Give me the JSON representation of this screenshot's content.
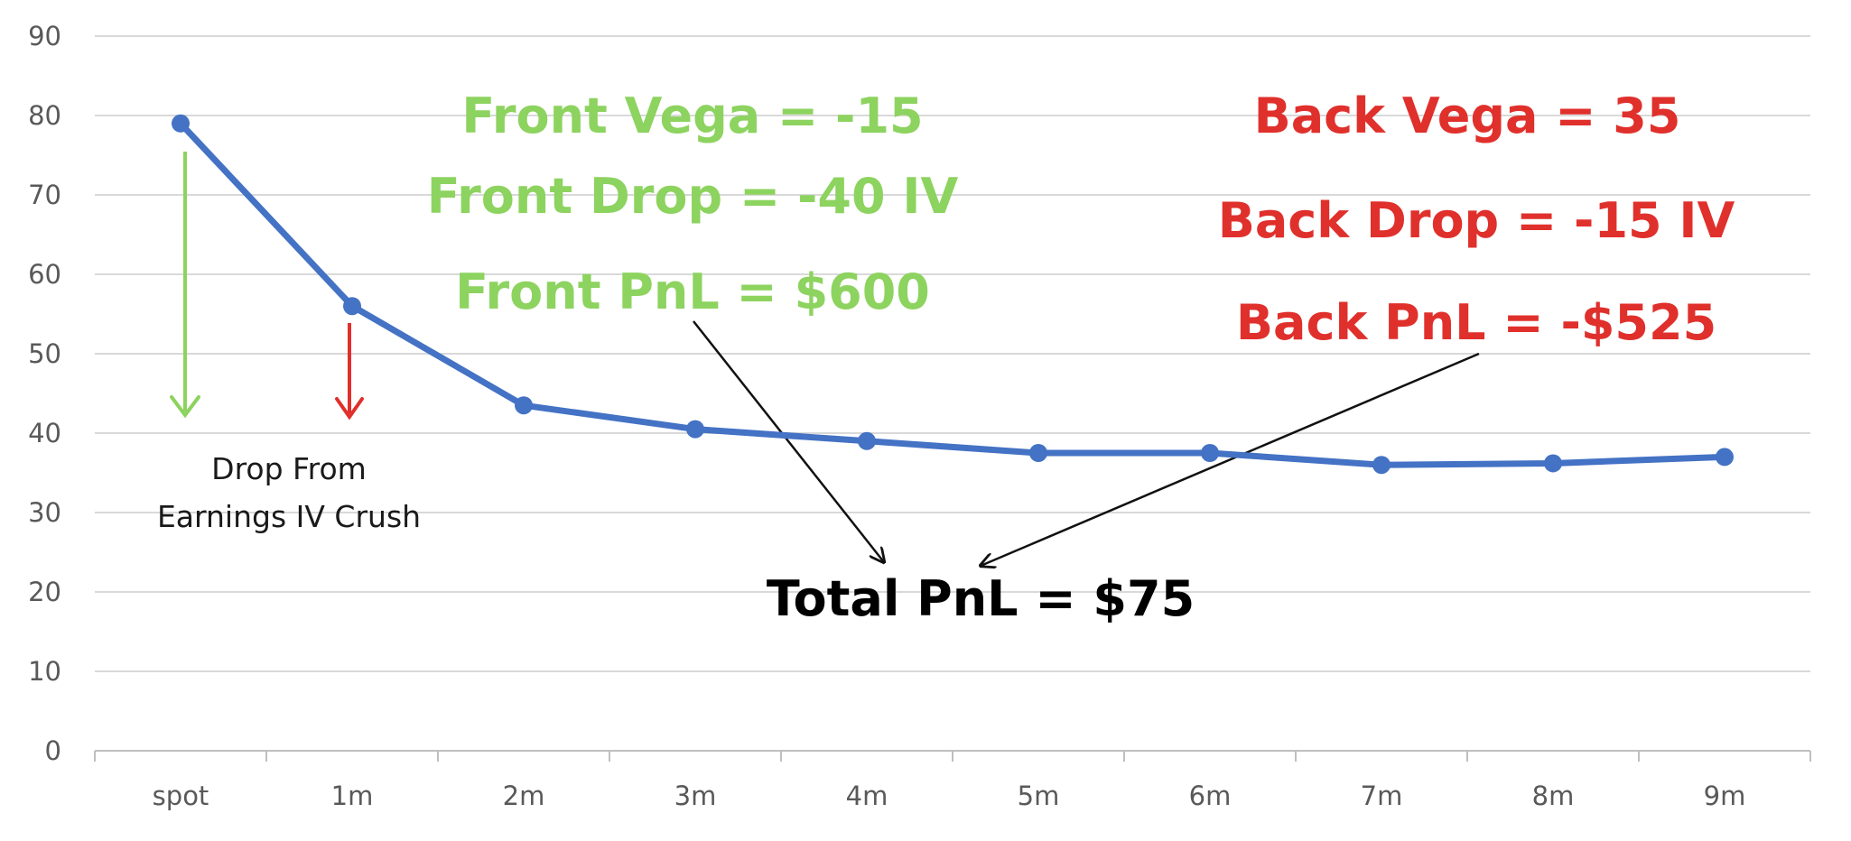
{
  "chart_data": {
    "type": "line",
    "categories": [
      "spot",
      "1m",
      "2m",
      "3m",
      "4m",
      "5m",
      "6m",
      "7m",
      "8m",
      "9m"
    ],
    "series": [
      {
        "values": [
          79,
          56,
          43.5,
          40.5,
          39,
          37.5,
          37.5,
          36,
          36.2,
          37
        ]
      }
    ],
    "ylim": [
      0,
      90
    ],
    "yticks": [
      0,
      10,
      20,
      30,
      40,
      50,
      60,
      70,
      80,
      90
    ],
    "grid": true,
    "legend": "none",
    "colors": {
      "line": "#4472C4",
      "front": "#8DD35F",
      "back": "#E0302C",
      "grid": "#D9D9D9",
      "tick_text": "#595959"
    },
    "annotations": {
      "front_vega": "Front Vega = -15",
      "front_drop": "Front Drop = -40 IV",
      "front_pnl": "Front PnL = $600",
      "back_vega": "Back Vega = 35",
      "back_drop": "Back Drop = -15 IV",
      "back_pnl": "Back PnL = -$525",
      "total_pnl": "Total PnL = $75",
      "drop_note_line1": "Drop From",
      "drop_note_line2": "Earnings IV Crush"
    }
  }
}
